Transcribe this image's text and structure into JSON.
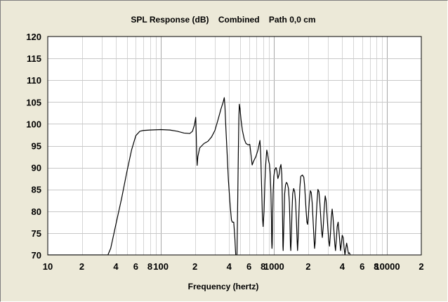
{
  "chart_data": {
    "type": "line",
    "title": "SPL Response (dB)    Combined    Path 0,0 cm",
    "xlabel": "Frequency (hertz)",
    "ylabel": "",
    "x_scale": "log",
    "xlim": [
      10,
      20000
    ],
    "ylim": [
      70,
      120
    ],
    "grid": true,
    "x_tick_labels": [
      {
        "value": 10,
        "label": "10"
      },
      {
        "value": 20,
        "label": "2"
      },
      {
        "value": 40,
        "label": "4"
      },
      {
        "value": 60,
        "label": "6"
      },
      {
        "value": 80,
        "label": "8"
      },
      {
        "value": 100,
        "label": "100"
      },
      {
        "value": 200,
        "label": "2"
      },
      {
        "value": 400,
        "label": "4"
      },
      {
        "value": 600,
        "label": "6"
      },
      {
        "value": 800,
        "label": "8"
      },
      {
        "value": 1000,
        "label": "1000"
      },
      {
        "value": 2000,
        "label": "2"
      },
      {
        "value": 4000,
        "label": "4"
      },
      {
        "value": 6000,
        "label": "6"
      },
      {
        "value": 8000,
        "label": "8"
      },
      {
        "value": 10000,
        "label": "10000"
      },
      {
        "value": 20000,
        "label": "2"
      }
    ],
    "y_ticks": [
      70,
      75,
      80,
      85,
      90,
      95,
      100,
      105,
      110,
      115,
      120
    ],
    "series": [
      {
        "color": "#000000",
        "points": [
          [
            10,
            70
          ],
          [
            20,
            70
          ],
          [
            34,
            70
          ],
          [
            36,
            71.5
          ],
          [
            40,
            77
          ],
          [
            45,
            83
          ],
          [
            50,
            89
          ],
          [
            55,
            94
          ],
          [
            60,
            97.3
          ],
          [
            65,
            98.3
          ],
          [
            70,
            98.5
          ],
          [
            80,
            98.6
          ],
          [
            100,
            98.7
          ],
          [
            120,
            98.6
          ],
          [
            140,
            98.3
          ],
          [
            160,
            97.9
          ],
          [
            180,
            97.8
          ],
          [
            190,
            98.3
          ],
          [
            198,
            99.8
          ],
          [
            203,
            101.5
          ],
          [
            205,
            98
          ],
          [
            207,
            93
          ],
          [
            209,
            90.5
          ],
          [
            212,
            92.5
          ],
          [
            220,
            94.5
          ],
          [
            240,
            95.5
          ],
          [
            260,
            96
          ],
          [
            280,
            97
          ],
          [
            300,
            98.5
          ],
          [
            320,
            101
          ],
          [
            340,
            103.5
          ],
          [
            355,
            105
          ],
          [
            363,
            106
          ],
          [
            368,
            104
          ],
          [
            375,
            99
          ],
          [
            385,
            93
          ],
          [
            395,
            87
          ],
          [
            410,
            81
          ],
          [
            420,
            78
          ],
          [
            428,
            77.5
          ],
          [
            440,
            77.5
          ],
          [
            450,
            74
          ],
          [
            458,
            70
          ],
          [
            465,
            70
          ],
          [
            470,
            70
          ],
          [
            473,
            75
          ],
          [
            478,
            84
          ],
          [
            483,
            93
          ],
          [
            488,
            101
          ],
          [
            493,
            104.5
          ],
          [
            500,
            103.5
          ],
          [
            510,
            101
          ],
          [
            525,
            98.5
          ],
          [
            545,
            96.5
          ],
          [
            565,
            95.5
          ],
          [
            590,
            95.2
          ],
          [
            610,
            95.3
          ],
          [
            625,
            93
          ],
          [
            640,
            90.6
          ],
          [
            660,
            91.5
          ],
          [
            690,
            92.5
          ],
          [
            720,
            94
          ],
          [
            740,
            95.5
          ],
          [
            750,
            96.2
          ],
          [
            762,
            93
          ],
          [
            775,
            86
          ],
          [
            788,
            79
          ],
          [
            800,
            76.5
          ],
          [
            815,
            80
          ],
          [
            828,
            86
          ],
          [
            840,
            90
          ],
          [
            850,
            92
          ],
          [
            862,
            94
          ],
          [
            875,
            93.2
          ],
          [
            895,
            91.5
          ],
          [
            910,
            90.8
          ],
          [
            925,
            88.5
          ],
          [
            938,
            84
          ],
          [
            948,
            78
          ],
          [
            953,
            73
          ],
          [
            958,
            71.5
          ],
          [
            963,
            72.5
          ],
          [
            970,
            78
          ],
          [
            980,
            84
          ],
          [
            995,
            88
          ],
          [
            1015,
            89.5
          ],
          [
            1040,
            90
          ],
          [
            1060,
            89.2
          ],
          [
            1080,
            87.5
          ],
          [
            1110,
            88.5
          ],
          [
            1130,
            90
          ],
          [
            1150,
            90.7
          ],
          [
            1170,
            88.5
          ],
          [
            1180,
            84
          ],
          [
            1190,
            77
          ],
          [
            1197,
            72
          ],
          [
            1203,
            71
          ],
          [
            1212,
            74
          ],
          [
            1225,
            79
          ],
          [
            1240,
            84
          ],
          [
            1262,
            86
          ],
          [
            1285,
            86.6
          ],
          [
            1310,
            86.3
          ],
          [
            1340,
            85.2
          ],
          [
            1365,
            82
          ],
          [
            1382,
            77
          ],
          [
            1395,
            72
          ],
          [
            1405,
            71
          ],
          [
            1420,
            74
          ],
          [
            1440,
            80
          ],
          [
            1460,
            84
          ],
          [
            1490,
            85.2
          ],
          [
            1520,
            84.5
          ],
          [
            1550,
            82
          ],
          [
            1580,
            77
          ],
          [
            1600,
            73
          ],
          [
            1612,
            71
          ],
          [
            1630,
            73.5
          ],
          [
            1660,
            80
          ],
          [
            1690,
            85.5
          ],
          [
            1720,
            88
          ],
          [
            1780,
            88.3
          ],
          [
            1830,
            87.8
          ],
          [
            1860,
            86
          ],
          [
            1890,
            83
          ],
          [
            1920,
            80
          ],
          [
            1950,
            77.5
          ],
          [
            1980,
            77
          ],
          [
            2010,
            79
          ],
          [
            2050,
            82.5
          ],
          [
            2090,
            84.7
          ],
          [
            2130,
            84.3
          ],
          [
            2170,
            82
          ],
          [
            2210,
            78
          ],
          [
            2250,
            74
          ],
          [
            2280,
            71.5
          ],
          [
            2310,
            73
          ],
          [
            2350,
            78
          ],
          [
            2400,
            82.5
          ],
          [
            2440,
            85
          ],
          [
            2490,
            84.5
          ],
          [
            2530,
            82.5
          ],
          [
            2580,
            79
          ],
          [
            2630,
            75.5
          ],
          [
            2670,
            74
          ],
          [
            2720,
            76.5
          ],
          [
            2770,
            80.5
          ],
          [
            2830,
            83.5
          ],
          [
            2880,
            82.5
          ],
          [
            2930,
            79.5
          ],
          [
            2990,
            76
          ],
          [
            3040,
            73.3
          ],
          [
            3090,
            72
          ],
          [
            3150,
            75
          ],
          [
            3200,
            78.5
          ],
          [
            3260,
            80.5
          ],
          [
            3320,
            78.5
          ],
          [
            3380,
            75.5
          ],
          [
            3440,
            72.5
          ],
          [
            3490,
            71
          ],
          [
            3550,
            73.5
          ],
          [
            3610,
            76.5
          ],
          [
            3680,
            77.5
          ],
          [
            3740,
            75.5
          ],
          [
            3810,
            73
          ],
          [
            3870,
            71
          ],
          [
            3930,
            72.5
          ],
          [
            4000,
            74.5
          ],
          [
            4080,
            74
          ],
          [
            4160,
            71.5
          ],
          [
            4230,
            70
          ],
          [
            4300,
            71.5
          ],
          [
            4380,
            72.7
          ],
          [
            4460,
            71.5
          ],
          [
            4540,
            70.3
          ],
          [
            4620,
            70.5
          ],
          [
            4700,
            70.1
          ]
        ]
      }
    ]
  }
}
